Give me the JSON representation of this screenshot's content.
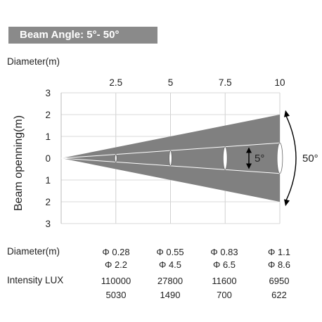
{
  "title": "Beam Angle: 5°- 50°",
  "chart_data": {
    "type": "area",
    "xlabel": "Diameter(m)",
    "ylabel": "Beam openning(m)",
    "x_ticks": [
      "2.5",
      "5",
      "7.5",
      "10"
    ],
    "y_ticks": [
      "3",
      "2",
      "1",
      "0",
      "1",
      "2",
      "3"
    ],
    "xlim": [
      0,
      10
    ],
    "ylim": [
      -3,
      3
    ],
    "wide_beam": {
      "angle": "50°",
      "x": [
        0,
        10
      ],
      "half_width": [
        0,
        2
      ]
    },
    "narrow_beam": {
      "angle": "5°",
      "x": [
        0,
        10
      ],
      "half_width": [
        0,
        0.7
      ]
    },
    "annotations": {
      "narrow": "5°",
      "wide": "50°"
    }
  },
  "table": {
    "diameter_label": "Diameter(m)",
    "intensity_label": "Intensity LUX",
    "diameter_narrow": [
      "Φ 0.28",
      "Φ 0.55",
      "Φ 0.83",
      "Φ 1.1"
    ],
    "diameter_wide": [
      "Φ 2.2",
      "Φ 4.5",
      "Φ 6.5",
      "Φ 8.6"
    ],
    "lux_narrow": [
      "110000",
      "27800",
      "11600",
      "6950"
    ],
    "lux_wide": [
      "5030",
      "1490",
      "700",
      "622"
    ]
  }
}
